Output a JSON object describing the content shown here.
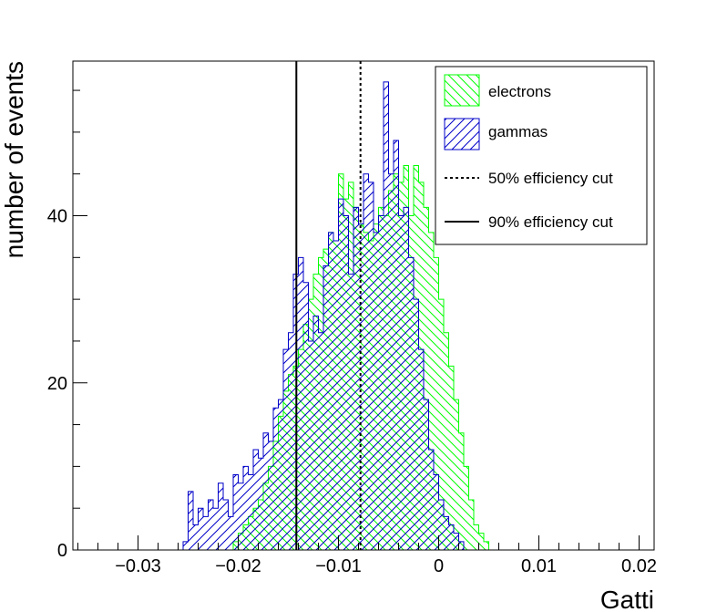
{
  "chart_data": {
    "type": "histogram",
    "xlabel": "Gatti",
    "ylabel": "number of events",
    "xlim": [
      -0.0365,
      0.0215
    ],
    "ylim": [
      0,
      58.5
    ],
    "x_ticks": [
      -0.03,
      -0.02,
      -0.01,
      0,
      0.01,
      0.02
    ],
    "x_tick_labels": [
      "−0.03",
      "−0.02",
      "−0.01",
      "0",
      "0.01",
      "0.02"
    ],
    "y_ticks": [
      0,
      20,
      40
    ],
    "y_tick_labels": [
      "0",
      "20",
      "40"
    ],
    "bin_width": 0.0005,
    "grid": false,
    "legend_position": "top-right",
    "legend": [
      {
        "label": "electrons",
        "kind": "fill",
        "series": "electrons"
      },
      {
        "label": "gammas",
        "kind": "fill",
        "series": "gammas"
      },
      {
        "label": "50% efficiency cut",
        "kind": "dashed-line"
      },
      {
        "label": "90% efficiency cut",
        "kind": "solid-line"
      }
    ],
    "series": [
      {
        "name": "electrons",
        "color": "#00ff00",
        "hatch": "backslash",
        "bins_start": -0.0205,
        "values": [
          1,
          2,
          3,
          4,
          5,
          6,
          8,
          10,
          13,
          16,
          19,
          21,
          22,
          24,
          27,
          30,
          33,
          35,
          36,
          38,
          37,
          45,
          42,
          44,
          41,
          39,
          38,
          37,
          39,
          41,
          40,
          43,
          45,
          44,
          46,
          40,
          46,
          44,
          41,
          38,
          35,
          30,
          26,
          22,
          18,
          14,
          10,
          6,
          3,
          2,
          1
        ]
      },
      {
        "name": "gammas",
        "color": "#0000c8",
        "hatch": "slash",
        "bins_start": -0.0255,
        "values": [
          1,
          7,
          3,
          5,
          4,
          6,
          5,
          8,
          6,
          4,
          9,
          8,
          10,
          9,
          12,
          11,
          14,
          13,
          17,
          18,
          24,
          26,
          33,
          35,
          32,
          25,
          28,
          26,
          34,
          38,
          37,
          42,
          40,
          33,
          41,
          39,
          45,
          44,
          38,
          40,
          56,
          45,
          49,
          40,
          41,
          35,
          30,
          24,
          18,
          12,
          9,
          6,
          4,
          3,
          2,
          1
        ]
      }
    ],
    "cut_lines": [
      {
        "name": "50% efficiency cut",
        "x": -0.0078,
        "style": "dashed"
      },
      {
        "name": "90% efficiency cut",
        "x": -0.0142,
        "style": "solid"
      }
    ]
  }
}
